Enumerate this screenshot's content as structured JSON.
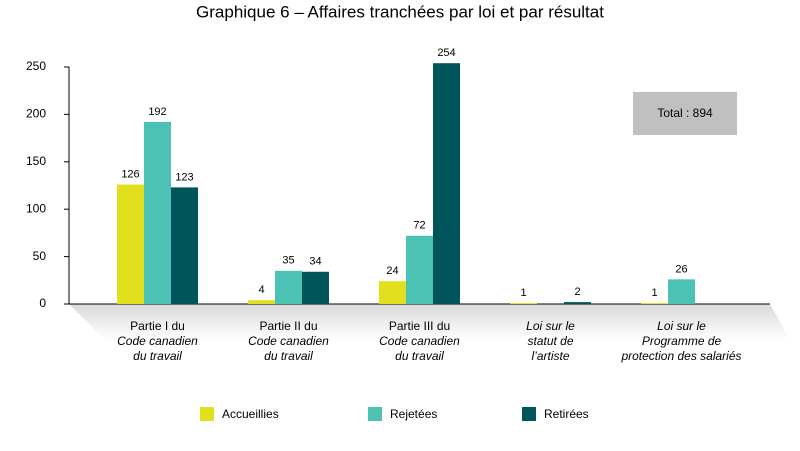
{
  "chart_data": {
    "type": "bar",
    "title": "Graphique 6 – Affaires tranchées par loi et par résultat",
    "categories": [
      [
        "Partie I du",
        "Code canadien",
        "du travail"
      ],
      [
        "Partie II du",
        "Code canadien",
        "du travail"
      ],
      [
        "Partie III du",
        "Code canadien",
        "du travail"
      ],
      [
        "Loi sur le",
        "statut de",
        "l’artiste"
      ],
      [
        "Loi sur le",
        "Programme de",
        "protection des salariés"
      ]
    ],
    "series": [
      {
        "name": "Accueillies",
        "color": "#e2e01c",
        "values": [
          126,
          4,
          24,
          1,
          1
        ]
      },
      {
        "name": "Rejetées",
        "color": "#4cc2b5",
        "values": [
          192,
          35,
          72,
          null,
          26
        ]
      },
      {
        "name": "Retirées",
        "color": "#00555b",
        "values": [
          123,
          34,
          254,
          2,
          null
        ]
      }
    ],
    "ylim": [
      0,
      250
    ],
    "yticks": [
      0,
      50,
      100,
      150,
      200,
      250
    ],
    "grid": false,
    "annotation": "Total : 894"
  }
}
